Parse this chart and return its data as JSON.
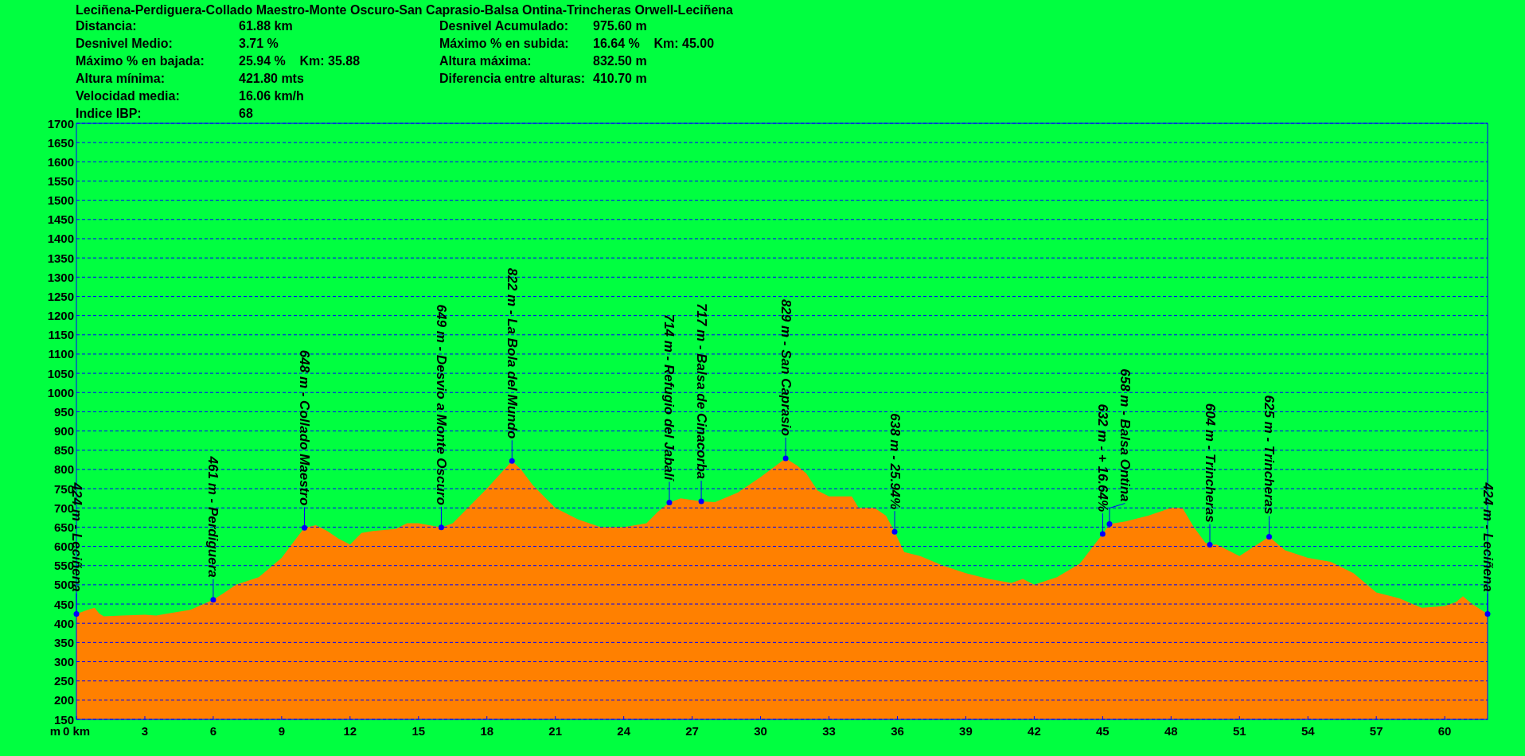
{
  "chart_data": {
    "type": "area",
    "title": "Leciñena-Perdiguera-Collado Maestro-Monte Oscuro-San Caprasio-Balsa Ontina-Trincheras Orwell-Leciñena",
    "ylabel": "m",
    "x": [
      0,
      0.5,
      0.8,
      1.0,
      1.2,
      2,
      3,
      3.5,
      4,
      5,
      6,
      6.5,
      7,
      8,
      9,
      9.5,
      10,
      10.5,
      11,
      11.5,
      12,
      12.5,
      13,
      14,
      14.5,
      15,
      16,
      16.5,
      17,
      18,
      19.1,
      19.5,
      20,
      21,
      22,
      23,
      24,
      25,
      25.5,
      26,
      26.5,
      27.4,
      28,
      29,
      30,
      31.1,
      31.6,
      32,
      32.5,
      33,
      34,
      34.3,
      35,
      35.5,
      35.88,
      36.3,
      37,
      38,
      39,
      40,
      41,
      41.5,
      42,
      43,
      44,
      45,
      45.3,
      46,
      47,
      48,
      48.5,
      49,
      49.5,
      49.7,
      50,
      51,
      52.3,
      53,
      54,
      55,
      56,
      57,
      58,
      59,
      60,
      60.5,
      60.8,
      61.2,
      61.88
    ],
    "series": [
      {
        "color": "#ff8000",
        "values": [
          424,
          435,
          440,
          425,
          418,
          420,
          422,
          420,
          425,
          435,
          461,
          480,
          500,
          520,
          570,
          610,
          648,
          655,
          640,
          620,
          605,
          635,
          640,
          645,
          660,
          660,
          649,
          660,
          690,
          750,
          822,
          800,
          760,
          700,
          670,
          650,
          650,
          660,
          690,
          714,
          725,
          717,
          715,
          740,
          780,
          829,
          810,
          790,
          745,
          730,
          730,
          700,
          700,
          680,
          638,
          585,
          575,
          550,
          530,
          515,
          505,
          515,
          500,
          520,
          555,
          632,
          658,
          665,
          680,
          700,
          700,
          650,
          610,
          604,
          605,
          575,
          625,
          590,
          570,
          560,
          530,
          480,
          465,
          440,
          445,
          455,
          470,
          450,
          424
        ]
      }
    ],
    "xlim": [
      0,
      61.88
    ],
    "xticks": [
      {
        "value": 0,
        "label": "0 km"
      },
      3,
      6,
      9,
      12,
      15,
      18,
      21,
      24,
      27,
      30,
      33,
      36,
      39,
      42,
      45,
      48,
      51,
      54,
      57,
      60
    ],
    "ylim": [
      150,
      1700
    ],
    "yticks": [
      150,
      200,
      250,
      300,
      350,
      400,
      450,
      500,
      550,
      600,
      650,
      700,
      750,
      800,
      850,
      900,
      950,
      1000,
      1050,
      1100,
      1150,
      1200,
      1250,
      1300,
      1350,
      1400,
      1450,
      1500,
      1550,
      1600,
      1650,
      1700
    ],
    "grid": "y",
    "annotations": [
      "Distancia: 61.88 km",
      "Desnivel Acumulado: 975.60 m",
      "Desnivel Medio: 3.71 %",
      "Máximo % en subida: 16.64 %    Km: 45.00",
      "Máximo % en bajada: 25.94 %    Km: 35.88",
      "Altura máxima: 832.50 m",
      "Altura mínima: 421.80 mts",
      "Diferencia entre alturas: 410.70 m",
      "Velocidad media: 16.06 km/h",
      "Indice IBP: 68",
      {
        "text": "424 m - Leciñena",
        "x": 0,
        "y": 424
      },
      {
        "text": "461 m - Perdiguera",
        "x": 6,
        "y": 461
      },
      {
        "text": "648 m - Collado Maestro",
        "x": 10,
        "y": 648
      },
      {
        "text": "649 m - Desvio a Monte Oscuro",
        "x": 16,
        "y": 649
      },
      {
        "text": "822 m - La Bola del Mundo",
        "x": 19.1,
        "y": 822
      },
      {
        "text": "714 m - Refugio del Jabalí",
        "x": 26,
        "y": 714
      },
      {
        "text": "717 m - Balsa de Cinacorba",
        "x": 27.4,
        "y": 717
      },
      {
        "text": "829 m - San Caprasio",
        "x": 31.1,
        "y": 829
      },
      {
        "text": "638 m - 25.94%",
        "x": 35.88,
        "y": 638
      },
      {
        "text": "632 m - + 16.64%",
        "x": 45,
        "y": 632
      },
      {
        "text": "658 m - Balsa Ontina",
        "x": 45.3,
        "y": 658
      },
      {
        "text": "604 m - Trincheras",
        "x": 49.7,
        "y": 604
      },
      {
        "text": "625 m - Trincheras",
        "x": 52.3,
        "y": 625
      },
      {
        "text": "424 m - Leciñena",
        "x": 61.88,
        "y": 424
      }
    ]
  }
}
